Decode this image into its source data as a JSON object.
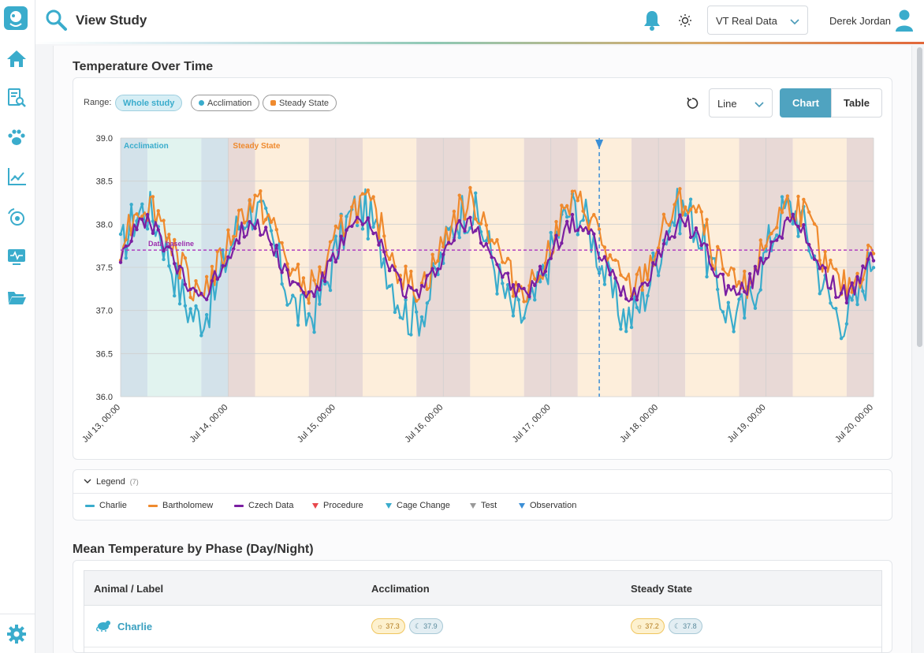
{
  "header": {
    "title": "View Study",
    "dataset_value": "VT Real Data",
    "user_name": "Derek Jordan"
  },
  "sidebar": {
    "items": [
      "home-icon",
      "study-search-icon",
      "paw-icon",
      "chart-icon",
      "device-icon",
      "monitor-icon",
      "folder-icon"
    ],
    "bottom": "gear-icon"
  },
  "chart_section": {
    "title": "Temperature Over Time",
    "range_label": "Range:",
    "range_options": [
      "Whole study",
      "Acclimation",
      "Steady State"
    ],
    "chart_type": "Line",
    "view_chart": "Chart",
    "view_table": "Table"
  },
  "chart_data": {
    "type": "line",
    "y_range": [
      36.0,
      39.0
    ],
    "y_ticks": [
      "39.0",
      "38.5",
      "38.0",
      "37.5",
      "37.0",
      "36.5",
      "36.0"
    ],
    "x_ticks": [
      "Jul 13, 00:00",
      "Jul 14, 00:00",
      "Jul 15, 00:00",
      "Jul 16, 00:00",
      "Jul 17, 00:00",
      "Jul 18, 00:00",
      "Jul 19, 00:00",
      "Jul 20, 00:00"
    ],
    "phases": [
      {
        "label": "Acclimation",
        "start_day": 0,
        "end_day": 1
      },
      {
        "label": "Steady State",
        "start_day": 1,
        "end_day": 7
      }
    ],
    "baseline": {
      "label": "Data baseline",
      "value": 37.7
    },
    "observation_marker_day": 4.45,
    "series": [
      {
        "name": "Charlie",
        "color": "#3aaccc",
        "mean": 37.55,
        "amp": 0.62,
        "noise": 0.28,
        "phase": 0.3
      },
      {
        "name": "Bartholomew",
        "color": "#ef8a2e",
        "mean": 37.75,
        "amp": 0.48,
        "noise": 0.2,
        "phase": 0.1
      },
      {
        "name": "Czech Data",
        "color": "#7b1fa2",
        "mean": 37.6,
        "amp": 0.4,
        "noise": 0.12,
        "phase": 0.2
      }
    ],
    "colors": {
      "acclimation_label": "#3aaccc",
      "steady_label": "#ef8a2e",
      "night_band": "#e8d9d6",
      "day_band": "#fdeedb",
      "acclimation_night": "#d3e2ea",
      "acclimation_day": "#e1f3ef"
    }
  },
  "legend": {
    "title": "Legend",
    "count": "(7)",
    "items": [
      {
        "label": "Charlie",
        "kind": "line",
        "color": "#3aaccc"
      },
      {
        "label": "Bartholomew",
        "kind": "line",
        "color": "#ef8a2e"
      },
      {
        "label": "Czech Data",
        "kind": "line",
        "color": "#7b1fa2"
      },
      {
        "label": "Procedure",
        "kind": "marker",
        "color": "#e8474c"
      },
      {
        "label": "Cage Change",
        "kind": "marker",
        "color": "#3aaccc"
      },
      {
        "label": "Test",
        "kind": "marker",
        "color": "#999999"
      },
      {
        "label": "Observation",
        "kind": "marker",
        "color": "#3b8fd6"
      }
    ]
  },
  "phase_table": {
    "title": "Mean Temperature by Phase (Day/Night)",
    "columns": [
      "Animal / Label",
      "Acclimation",
      "Steady State"
    ],
    "rows": [
      {
        "animal": "Charlie",
        "acclimation_day": "37.3",
        "acclimation_night": "37.9",
        "steady_day": "37.2",
        "steady_night": "37.8"
      }
    ]
  }
}
